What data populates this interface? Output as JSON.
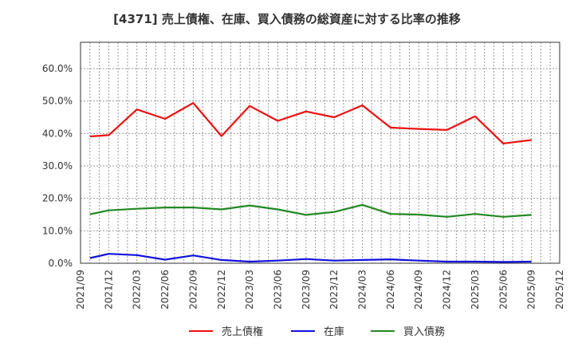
{
  "title": "[4371]  売上債権、在庫、買入債務の総資産に対する比率の推移",
  "chart_data": {
    "type": "line",
    "title": "[4371]  売上債権、在庫、買入債務の総資産に対する比率の推移",
    "xlabel": "",
    "ylabel": "",
    "ylim": [
      0,
      68
    ],
    "yticks": [
      0,
      10,
      20,
      30,
      40,
      50,
      60
    ],
    "ytick_labels": [
      "0.0%",
      "10.0%",
      "20.0%",
      "30.0%",
      "40.0%",
      "50.0%",
      "60.0%"
    ],
    "xtick_labels": [
      "2021/09",
      "2021/12",
      "2022/03",
      "2022/06",
      "2022/09",
      "2022/12",
      "2023/03",
      "2023/06",
      "2023/09",
      "2023/12",
      "2024/03",
      "2024/06",
      "2024/09",
      "2024/12",
      "2025/03",
      "2025/06",
      "2025/09",
      "2025/12"
    ],
    "grid": true,
    "legend_position": "bottom",
    "x": [
      "2021/10",
      "2021/12",
      "2022/03",
      "2022/06",
      "2022/09",
      "2022/12",
      "2023/03",
      "2023/06",
      "2023/09",
      "2023/12",
      "2024/03",
      "2024/06",
      "2024/09",
      "2024/12",
      "2025/03",
      "2025/06",
      "2025/09"
    ],
    "x_month_index": [
      1,
      3,
      6,
      9,
      12,
      15,
      18,
      21,
      24,
      27,
      30,
      33,
      36,
      39,
      42,
      45,
      48
    ],
    "series": [
      {
        "name": "売上債権",
        "color": "#ee1111",
        "values": [
          39.1,
          39.5,
          47.4,
          44.5,
          49.4,
          39.2,
          48.5,
          43.9,
          46.8,
          45.0,
          48.7,
          41.8,
          41.4,
          41.1,
          45.3,
          36.9,
          38.0
        ]
      },
      {
        "name": "在庫",
        "color": "#1111dd",
        "values": [
          1.6,
          2.9,
          2.5,
          1.1,
          2.4,
          1.0,
          0.5,
          0.8,
          1.3,
          0.8,
          1.0,
          1.2,
          0.8,
          0.5,
          0.5,
          0.4,
          0.5
        ]
      },
      {
        "name": "買入債務",
        "color": "#228822",
        "values": [
          15.1,
          16.3,
          16.8,
          17.2,
          17.2,
          16.6,
          17.8,
          16.6,
          14.9,
          15.8,
          18.0,
          15.2,
          15.0,
          14.3,
          15.2,
          14.3,
          14.9
        ]
      }
    ]
  },
  "legend": {
    "items": [
      {
        "label": "売上債権",
        "color": "#ee1111"
      },
      {
        "label": "在庫",
        "color": "#1111dd"
      },
      {
        "label": "買入債務",
        "color": "#228822"
      }
    ]
  }
}
